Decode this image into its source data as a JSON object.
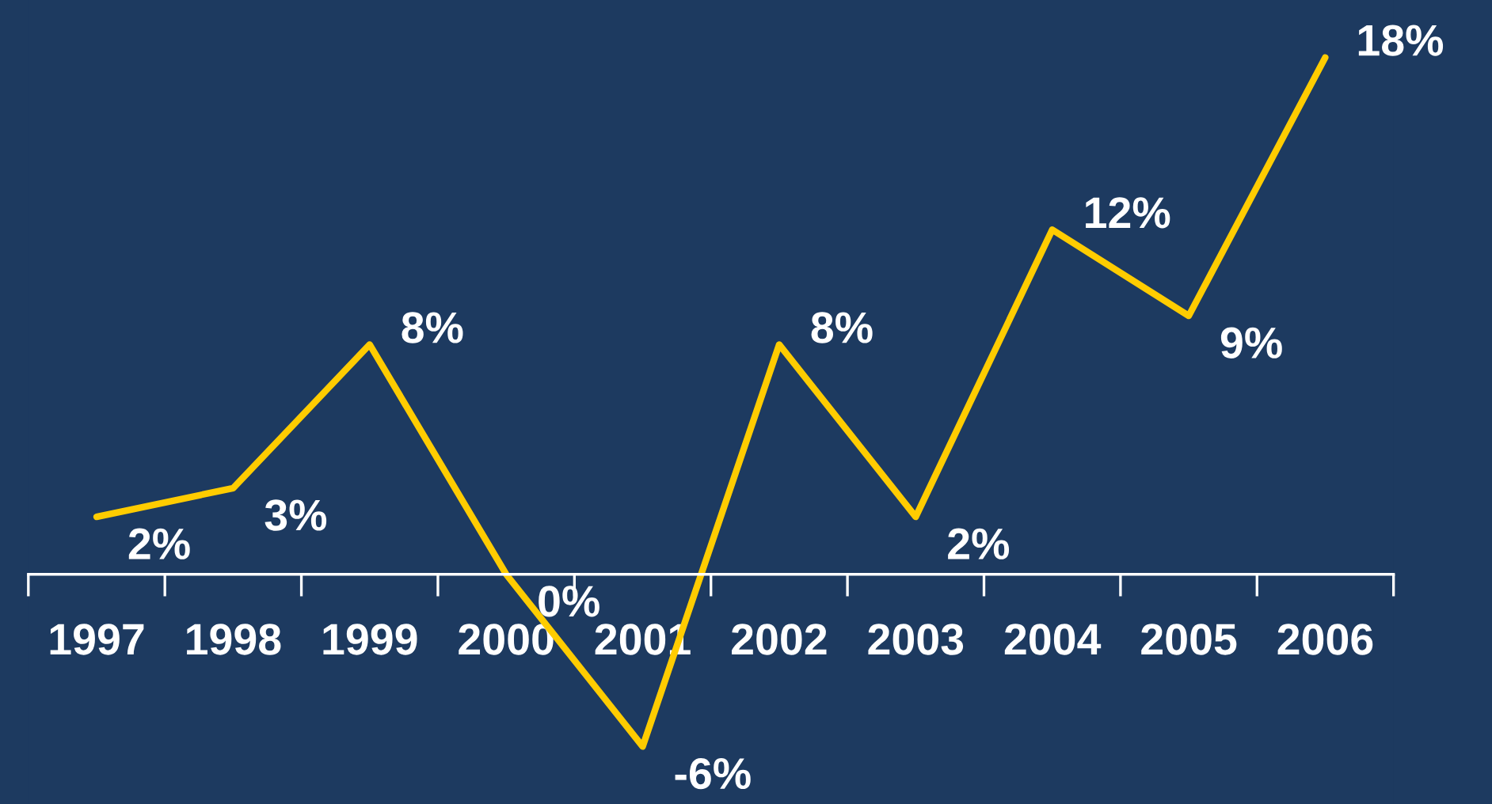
{
  "chart_data": {
    "type": "line",
    "categories": [
      "1997",
      "1998",
      "1999",
      "2000",
      "2001",
      "2002",
      "2003",
      "2004",
      "2005",
      "2006"
    ],
    "values": [
      2,
      3,
      8,
      0,
      -6,
      8,
      2,
      12,
      9,
      18
    ],
    "color": "#ffcc00",
    "ylim": [
      -8,
      20
    ],
    "data_labels": true,
    "value_labels": [
      "2%",
      "3%",
      "8%",
      "0%",
      "-6%",
      "8%",
      "2%",
      "12%",
      "9%",
      "18%"
    ],
    "grid": false,
    "legend": false,
    "marker": "none",
    "line_style": "solid"
  }
}
